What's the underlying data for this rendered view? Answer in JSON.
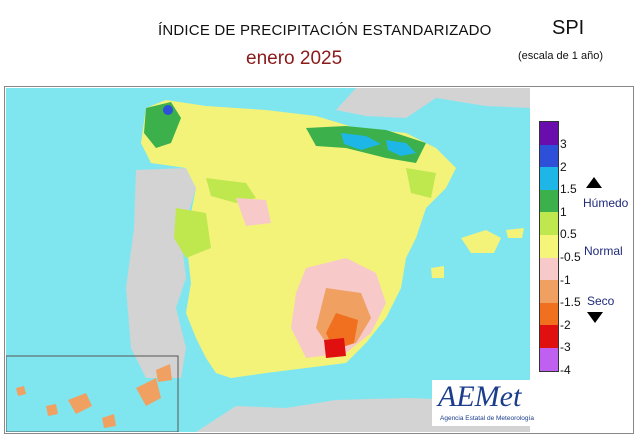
{
  "header": {
    "title": "ÍNDICE DE PRECIPITACIÓN ESTANDARIZADO",
    "subtitle": "enero  2025",
    "index_name": "SPI",
    "scale_note": "(escala de 1 año)"
  },
  "legend": {
    "classes": [
      {
        "color": "#6a0dad"
      },
      {
        "color": "#2e4fd8"
      },
      {
        "color": "#1eb6e6"
      },
      {
        "color": "#3cb04a"
      },
      {
        "color": "#bfe84f"
      },
      {
        "color": "#f5f57a"
      },
      {
        "color": "#f7c9c9"
      },
      {
        "color": "#f0a060"
      },
      {
        "color": "#f07020"
      },
      {
        "color": "#e01010"
      },
      {
        "color": "#c060f0"
      }
    ],
    "ticks": [
      "3",
      "2",
      "1.5",
      "1",
      "0.5",
      "-0.5",
      "-1",
      "-1.5",
      "-2",
      "-3",
      "-4"
    ],
    "labels": {
      "humid": "Húmedo",
      "normal": "Normal",
      "dry": "Seco"
    }
  },
  "map_colors": {
    "sea": "#7fe6f0",
    "foreign_land": "#d3d3d3"
  },
  "logo": {
    "name": "AEMet",
    "tagline": "Agencia Estatal de Meteorología"
  }
}
